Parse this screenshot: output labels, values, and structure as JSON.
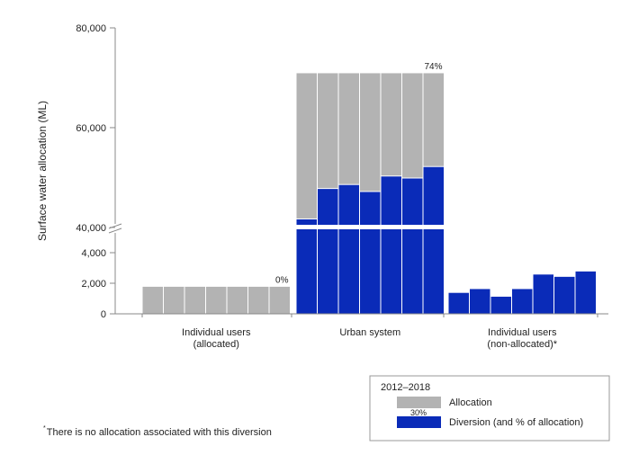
{
  "chart_data": {
    "type": "bar",
    "ylabel": "Surface water allocation (ML)",
    "broken_axis": true,
    "y_ticks_lower": [
      "0",
      "2,000",
      "4,000"
    ],
    "y_ticks_upper": [
      "40,000",
      "60,000",
      "80,000"
    ],
    "ylim_lower": [
      0,
      5000
    ],
    "ylim_upper": [
      38000,
      80000
    ],
    "groups": [
      {
        "label_line1": "Individual users",
        "label_line2": "(allocated)",
        "allocation": [
          1800,
          1800,
          1800,
          1800,
          1800,
          1800,
          1800
        ],
        "diversion": [
          0,
          0,
          0,
          0,
          0,
          0,
          0
        ],
        "pct_label": "0%"
      },
      {
        "label_line1": "Urban system",
        "label_line2": "",
        "allocation": [
          71000,
          71000,
          71000,
          71000,
          71000,
          71000,
          71000
        ],
        "diversion": [
          41700,
          47800,
          48600,
          47200,
          50300,
          49900,
          52200
        ],
        "pct_label": "74%"
      },
      {
        "label_line1": "Individual users",
        "label_line2": "(non-allocated)*",
        "allocation": [
          0,
          0,
          0,
          0,
          0,
          0,
          0
        ],
        "diversion": [
          1400,
          1650,
          1150,
          1650,
          2600,
          2450,
          2800
        ],
        "pct_label": ""
      }
    ],
    "legend": {
      "title": "2012–2018",
      "items": [
        {
          "label": "Allocation",
          "color": "#b3b3b3",
          "sample_text": ""
        },
        {
          "label": "Diversion (and % of allocation)",
          "color": "#0a2bb8",
          "sample_text": "30%"
        }
      ]
    },
    "colors": {
      "allocation": "#b3b3b3",
      "diversion": "#0a2bb8",
      "axis": "#888888"
    }
  },
  "footnote": {
    "marker": "*",
    "text": "There is no allocation associated with this diversion"
  }
}
